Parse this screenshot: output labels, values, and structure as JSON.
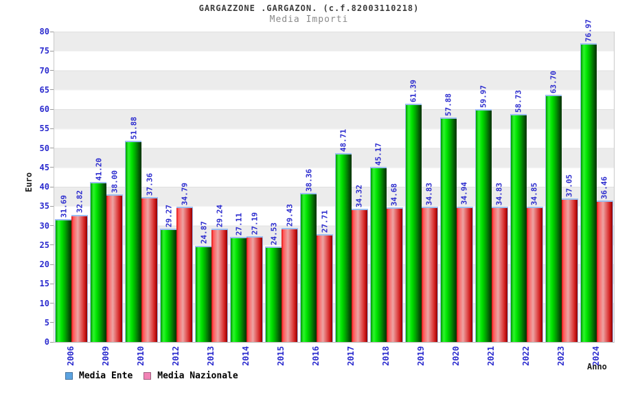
{
  "header": {
    "title": "GARGAZZONE .GARGAZON. (c.f.82003110218)",
    "subtitle": "Media Importi"
  },
  "chart_data": {
    "type": "bar",
    "title": "GARGAZZONE .GARGAZON. (c.f.82003110218)",
    "subtitle": "Media Importi",
    "xlabel": "Anno",
    "ylabel": "Euro",
    "ylim": [
      0,
      80
    ],
    "ytick_step": 5,
    "grid": "horizontal-bands-every-5",
    "legend_position": "bottom-left",
    "categories": [
      "2006",
      "2009",
      "2010",
      "2012",
      "2013",
      "2014",
      "2015",
      "2016",
      "2017",
      "2018",
      "2019",
      "2020",
      "2021",
      "2022",
      "2023",
      "2024"
    ],
    "series": [
      {
        "name": "Media Ente",
        "color": "#00cc00",
        "values": [
          31.69,
          41.2,
          51.88,
          29.27,
          24.87,
          27.11,
          24.53,
          38.36,
          48.71,
          45.17,
          61.39,
          57.88,
          59.97,
          58.73,
          63.7,
          76.97
        ],
        "labels": [
          "31.69",
          "41.20",
          "51.88",
          "29.27",
          "24.87",
          "27.11",
          "24.53",
          "38.36",
          "48.71",
          "45.17",
          "61.39",
          "57.88",
          "59.97",
          "58.73",
          "63.70",
          "76.97"
        ]
      },
      {
        "name": "Media Nazionale",
        "color": "#dd3333",
        "values": [
          32.82,
          38.0,
          37.36,
          34.79,
          29.24,
          27.19,
          29.43,
          27.71,
          34.32,
          34.68,
          34.83,
          34.94,
          34.83,
          34.85,
          37.05,
          36.46
        ],
        "labels": [
          "32.82",
          "38.00",
          "37.36",
          "34.79",
          "29.24",
          "27.19",
          "29.43",
          "27.71",
          "34.32",
          "34.68",
          "34.83",
          "34.94",
          "34.83",
          "34.85",
          "37.05",
          "36.46"
        ]
      }
    ]
  },
  "legend": {
    "ente_label": "Media Ente",
    "nazionale_label": "Media Nazionale"
  },
  "colors": {
    "tick_text": "#2a2ace",
    "value_label_text": "#2a2ace",
    "bar_ente_main": "#00cc00",
    "bar_nazionale_main": "#dd3333",
    "bar_top_cap": "#9cbef0",
    "band_gray": "#ececec",
    "legend_ente_fill": "#5ba3e0",
    "legend_ente_border": "#44719c",
    "legend_nazionale_fill": "#f283b6",
    "legend_nazionale_border": "#9c5f7e",
    "title_text": "#3c3c3c",
    "subtitle_text": "#8a8a8a"
  }
}
